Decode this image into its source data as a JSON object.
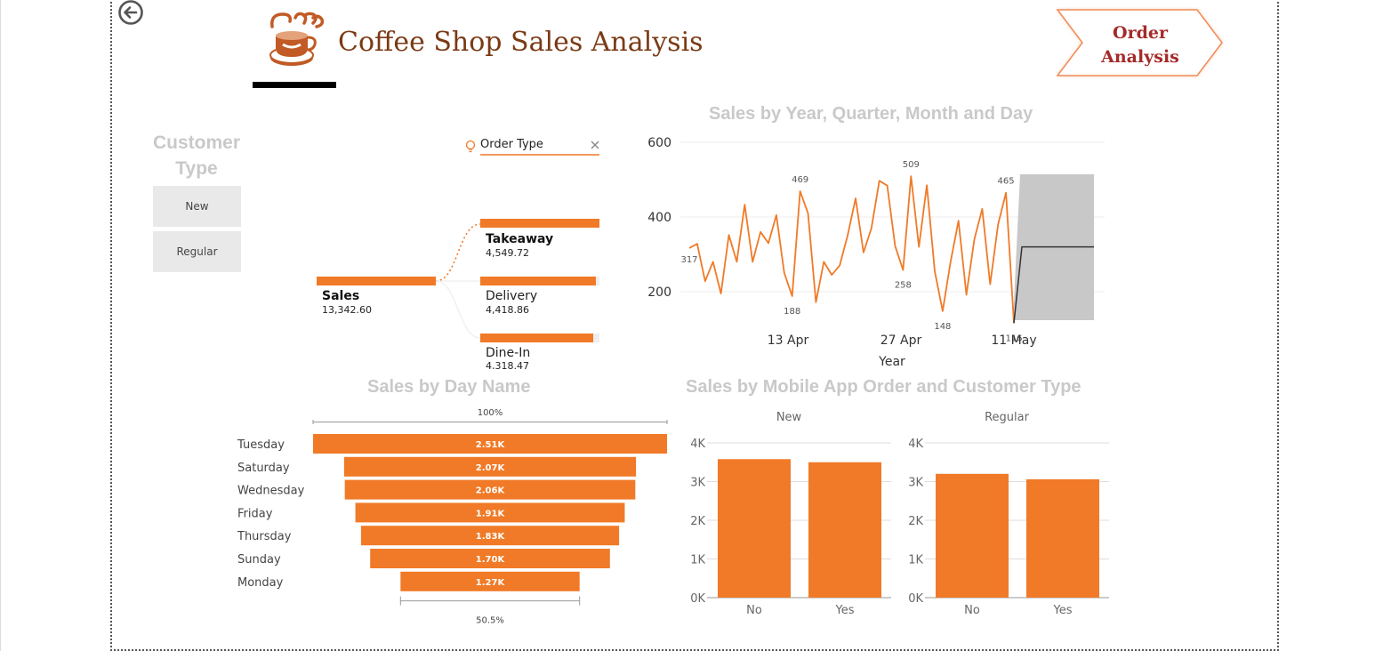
{
  "header": {
    "title": "Coffee Shop Sales Analysis",
    "nav_button_line1": "Order",
    "nav_button_line2": "Analysis",
    "back_icon": "back-arrow-icon",
    "logo_icon": "coffee-cup-logo"
  },
  "slicer": {
    "title_line1": "Customer",
    "title_line2": "Type",
    "options": [
      "New",
      "Regular"
    ]
  },
  "decomposition": {
    "filter_label": "Order Type",
    "root": {
      "label": "Sales",
      "value": "13,342.60"
    },
    "children": [
      {
        "label": "Takeaway",
        "value": "4,549.72"
      },
      {
        "label": "Delivery",
        "value": "4,418.86"
      },
      {
        "label": "Dine-In",
        "value": "4,318.47"
      }
    ]
  },
  "colors": {
    "accent": "#F07A27",
    "title_gray": "#C9C9C9",
    "brand_brown": "#7A3A14",
    "nav_red": "#A52A2A"
  },
  "chart_data": [
    {
      "type": "line",
      "title": "Sales by Year, Quarter, Month and Day",
      "xlabel": "Year",
      "x_tick_labels": [
        "13 Apr",
        "27 Apr",
        "11 May"
      ],
      "y_tick_labels": [
        "200",
        "400",
        "600"
      ],
      "ylim": [
        100,
        620
      ],
      "values": [
        317,
        328,
        228,
        280,
        195,
        352,
        280,
        433,
        280,
        360,
        330,
        405,
        250,
        188,
        469,
        410,
        172,
        280,
        245,
        270,
        350,
        450,
        305,
        370,
        497,
        484,
        322,
        258,
        509,
        320,
        485,
        255,
        148,
        280,
        390,
        192,
        340,
        422,
        220,
        380,
        465,
        116
      ],
      "data_labels": [
        {
          "index": 0,
          "text": "317"
        },
        {
          "index": 13,
          "text": "188"
        },
        {
          "index": 14,
          "text": "469"
        },
        {
          "index": 27,
          "text": "258"
        },
        {
          "index": 28,
          "text": "509"
        },
        {
          "index": 32,
          "text": "148"
        },
        {
          "index": 40,
          "text": "465"
        },
        {
          "index": 41,
          "text": "116"
        }
      ],
      "forecast": {
        "value": 320
      }
    },
    {
      "type": "bar",
      "orientation": "funnel",
      "title": "Sales by Day Name",
      "categories": [
        "Tuesday",
        "Saturday",
        "Wednesday",
        "Friday",
        "Thursday",
        "Sunday",
        "Monday"
      ],
      "values": [
        2510,
        2070,
        2060,
        1910,
        1830,
        1700,
        1270
      ],
      "value_labels": [
        "2.51K",
        "2.07K",
        "2.06K",
        "1.91K",
        "1.83K",
        "1.70K",
        "1.27K"
      ],
      "top_percent_label": "100%",
      "bottom_percent_label": "50.5%"
    },
    {
      "type": "bar",
      "title": "Sales by Mobile App Order and Customer Type",
      "categories": [
        "No",
        "Yes"
      ],
      "y_tick_labels": [
        "0K",
        "1K",
        "2K",
        "3K",
        "4K"
      ],
      "ylim": [
        0,
        4000
      ],
      "panels": [
        {
          "name": "New",
          "values": [
            3580,
            3500
          ]
        },
        {
          "name": "Regular",
          "values": [
            3200,
            3060
          ]
        }
      ]
    }
  ]
}
